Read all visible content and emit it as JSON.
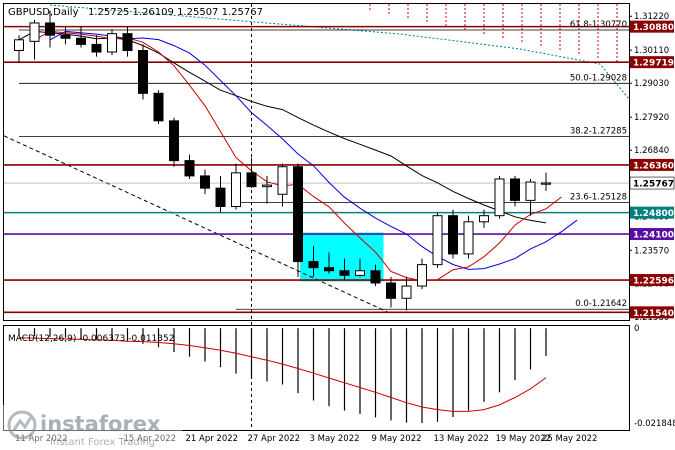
{
  "chart_data": {
    "type": "candlestick",
    "title": "GBPUSD,Daily",
    "ohlc_readout": "1.25725 1.26109 1.25507 1.25767",
    "x_ticks": [
      "11 Apr 2022",
      "15 Apr 2022",
      "21 Apr 2022",
      "27 Apr 2022",
      "3 May 2022",
      "9 May 2022",
      "13 May 2022",
      "19 May 2022",
      "25 May 2022"
    ],
    "y_ticks": [
      "1.31220",
      "1.30110",
      "1.29030",
      "1.27920",
      "1.26840",
      "1.25760",
      "1.24680",
      "1.23570",
      "1.22490",
      "1.21380"
    ],
    "ylim": [
      1.2129,
      1.3162
    ],
    "candles": [
      {
        "o": 1.301,
        "h": 1.306,
        "l": 1.297,
        "c": 1.3045
      },
      {
        "o": 1.304,
        "h": 1.311,
        "l": 1.298,
        "c": 1.31
      },
      {
        "o": 1.31,
        "h": 1.314,
        "l": 1.302,
        "c": 1.306
      },
      {
        "o": 1.306,
        "h": 1.3085,
        "l": 1.303,
        "c": 1.305
      },
      {
        "o": 1.305,
        "h": 1.309,
        "l": 1.302,
        "c": 1.303
      },
      {
        "o": 1.303,
        "h": 1.306,
        "l": 1.299,
        "c": 1.3005
      },
      {
        "o": 1.3005,
        "h": 1.308,
        "l": 1.2995,
        "c": 1.3065
      },
      {
        "o": 1.3065,
        "h": 1.309,
        "l": 1.299,
        "c": 1.301
      },
      {
        "o": 1.301,
        "h": 1.303,
        "l": 1.285,
        "c": 1.287
      },
      {
        "o": 1.287,
        "h": 1.288,
        "l": 1.277,
        "c": 1.278
      },
      {
        "o": 1.278,
        "h": 1.279,
        "l": 1.263,
        "c": 1.265
      },
      {
        "o": 1.265,
        "h": 1.267,
        "l": 1.259,
        "c": 1.26
      },
      {
        "o": 1.26,
        "h": 1.262,
        "l": 1.254,
        "c": 1.256
      },
      {
        "o": 1.256,
        "h": 1.26,
        "l": 1.248,
        "c": 1.25
      },
      {
        "o": 1.25,
        "h": 1.264,
        "l": 1.249,
        "c": 1.261
      },
      {
        "o": 1.261,
        "h": 1.266,
        "l": 1.256,
        "c": 1.2565
      },
      {
        "o": 1.2565,
        "h": 1.26,
        "l": 1.251,
        "c": 1.257
      },
      {
        "o": 1.254,
        "h": 1.264,
        "l": 1.25,
        "c": 1.263
      },
      {
        "o": 1.263,
        "h": 1.264,
        "l": 1.227,
        "c": 1.232
      },
      {
        "o": 1.232,
        "h": 1.237,
        "l": 1.227,
        "c": 1.23
      },
      {
        "o": 1.23,
        "h": 1.235,
        "l": 1.228,
        "c": 1.229
      },
      {
        "o": 1.229,
        "h": 1.233,
        "l": 1.226,
        "c": 1.2275
      },
      {
        "o": 1.2275,
        "h": 1.233,
        "l": 1.227,
        "c": 1.229
      },
      {
        "o": 1.229,
        "h": 1.231,
        "l": 1.224,
        "c": 1.225
      },
      {
        "o": 1.225,
        "h": 1.227,
        "l": 1.217,
        "c": 1.22
      },
      {
        "o": 1.22,
        "h": 1.227,
        "l": 1.216,
        "c": 1.224
      },
      {
        "o": 1.224,
        "h": 1.233,
        "l": 1.223,
        "c": 1.231
      },
      {
        "o": 1.231,
        "h": 1.248,
        "l": 1.23,
        "c": 1.247
      },
      {
        "o": 1.247,
        "h": 1.249,
        "l": 1.233,
        "c": 1.2345
      },
      {
        "o": 1.2345,
        "h": 1.247,
        "l": 1.233,
        "c": 1.245
      },
      {
        "o": 1.245,
        "h": 1.249,
        "l": 1.243,
        "c": 1.247
      },
      {
        "o": 1.247,
        "h": 1.26,
        "l": 1.246,
        "c": 1.259
      },
      {
        "o": 1.259,
        "h": 1.26,
        "l": 1.25,
        "c": 1.252
      },
      {
        "o": 1.252,
        "h": 1.259,
        "l": 1.247,
        "c": 1.258
      },
      {
        "o": 1.2573,
        "h": 1.2611,
        "l": 1.2551,
        "c": 1.2577
      }
    ],
    "horizontal_levels": [
      {
        "label": "1.30880",
        "value": 1.3088,
        "color": "#8b0000"
      },
      {
        "label": "1.29719",
        "value": 1.29719,
        "color": "#8b0000"
      },
      {
        "label": "1.26360",
        "value": 1.2636,
        "color": "#8b0000"
      },
      {
        "label": "1.24800",
        "value": 1.248,
        "color": "#008080"
      },
      {
        "label": "1.24100",
        "value": 1.241,
        "color": "#5a0fa0"
      },
      {
        "label": "1.22596",
        "value": 1.22596,
        "color": "#8b0000"
      },
      {
        "label": "1.21540",
        "value": 1.2154,
        "color": "#8b0000"
      }
    ],
    "current_price": {
      "label": "1.25767",
      "value": 1.25767
    },
    "fib_levels": [
      {
        "label": "61.8-1.30770",
        "value": 1.3077
      },
      {
        "label": "50.0-1.29028",
        "value": 1.29028
      },
      {
        "label": "38.2-1.27285",
        "value": 1.27285
      },
      {
        "label": "23.6-1.25128",
        "value": 1.25128
      },
      {
        "label": "0.0-1.21642",
        "value": 1.21642
      }
    ],
    "macd": {
      "label": "MACD(12,26,9) -0.006373 -0.011352",
      "ticks": [
        "0",
        "-0.021848"
      ],
      "ylim": [
        -0.0235,
        0.0005
      ],
      "histogram": [
        -0.0015,
        -0.0018,
        -0.002,
        -0.0022,
        -0.0024,
        -0.0026,
        -0.0028,
        -0.003,
        -0.0036,
        -0.0044,
        -0.0055,
        -0.0066,
        -0.0077,
        -0.009,
        -0.0105,
        -0.0115,
        -0.0123,
        -0.013,
        -0.015,
        -0.0167,
        -0.018,
        -0.019,
        -0.0198,
        -0.0206,
        -0.0213,
        -0.0218,
        -0.0219,
        -0.0216,
        -0.0205,
        -0.019,
        -0.017,
        -0.0148,
        -0.012,
        -0.0095,
        -0.0064
      ],
      "signal": [
        -0.0022,
        -0.0023,
        -0.0024,
        -0.0025,
        -0.0026,
        -0.0027,
        -0.0028,
        -0.003,
        -0.0031,
        -0.0033,
        -0.0036,
        -0.004,
        -0.0045,
        -0.0051,
        -0.0058,
        -0.0066,
        -0.0074,
        -0.0083,
        -0.0093,
        -0.0104,
        -0.0115,
        -0.0126,
        -0.0137,
        -0.0148,
        -0.016,
        -0.0172,
        -0.0182,
        -0.0188,
        -0.0192,
        -0.0192,
        -0.0188,
        -0.0177,
        -0.016,
        -0.014,
        -0.0114
      ]
    },
    "grid": false,
    "colors": {
      "bull_fill": "#ffffff",
      "bear_fill": "#000000",
      "cyan_zone": "#00ffff",
      "ma_red": "#cc0000",
      "ma_blue": "#0000dd",
      "ma_black": "#000000",
      "signal": "#cc0000"
    }
  },
  "watermark": {
    "brand": "instaforex",
    "tagline": "Instant Forex Trading"
  }
}
